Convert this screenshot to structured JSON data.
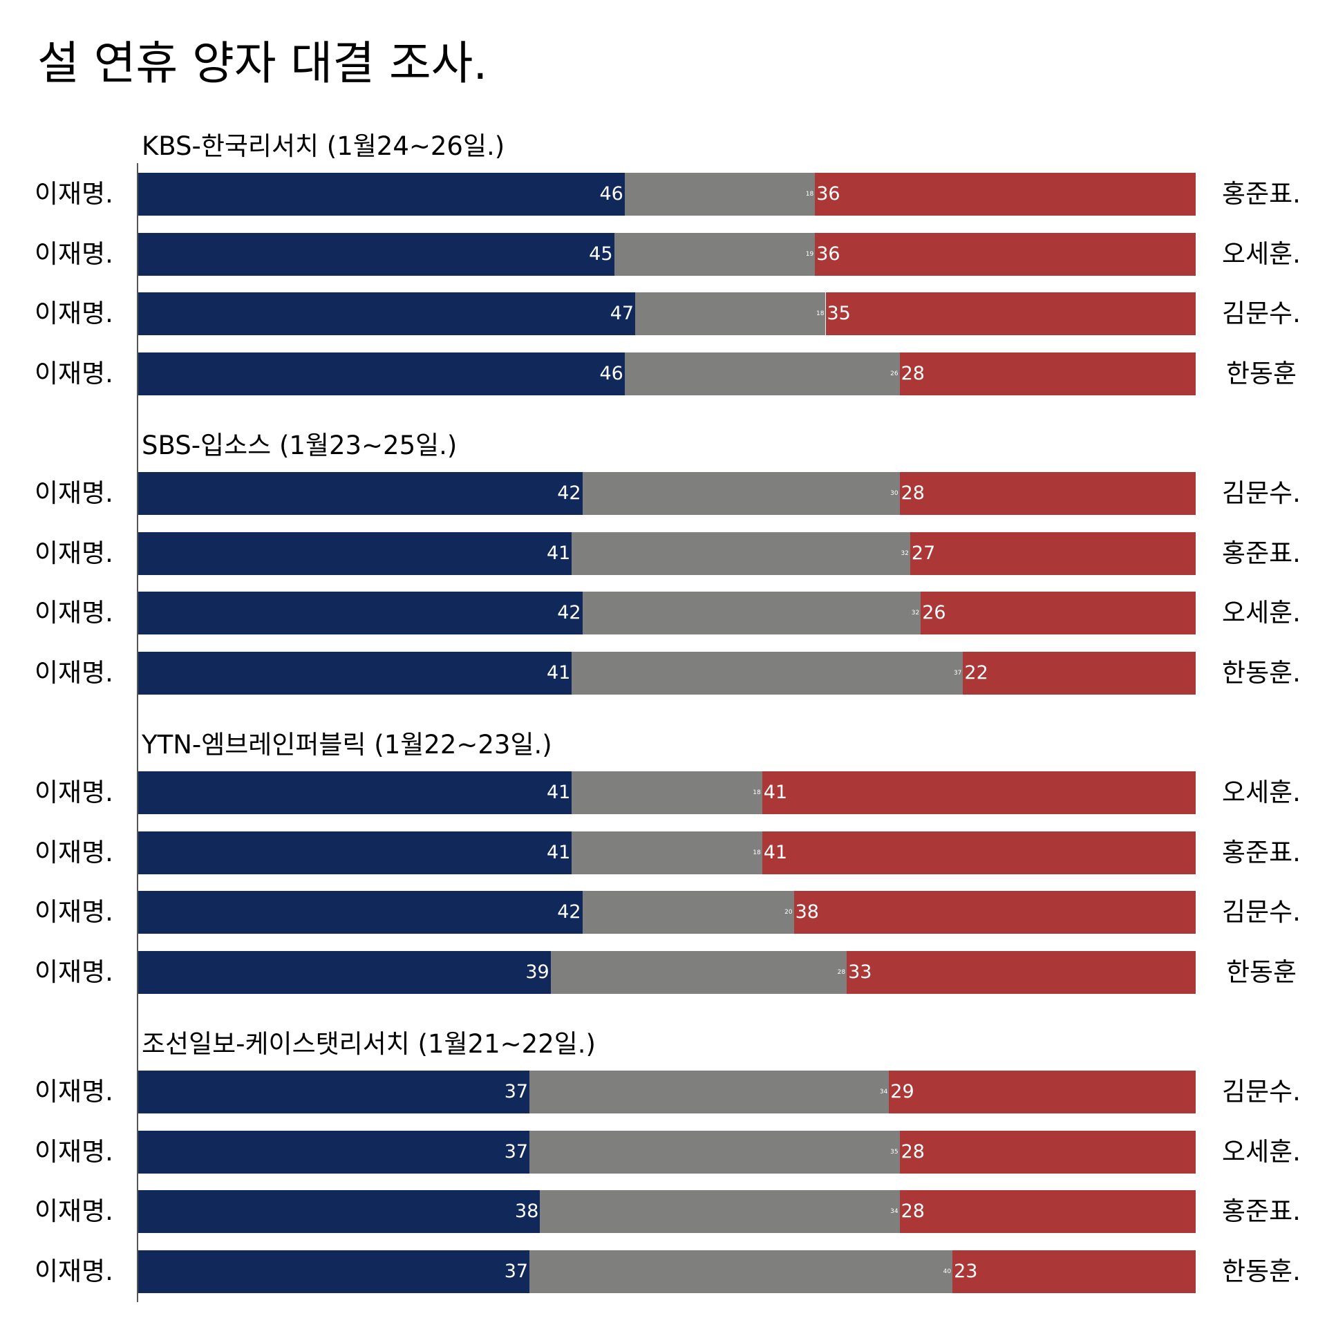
{
  "title": "설 연휴 양자 대결 조사.",
  "colors": {
    "candidate_a": "#10295a",
    "undecided": "#7f7f7d",
    "candidate_b": "#ab3836"
  },
  "chart_data": {
    "type": "bar",
    "orientation": "horizontal",
    "stacked": true,
    "xlim": [
      0,
      100
    ],
    "groups": [
      {
        "title": "KBS-한국리서치 (1월24~26일.)",
        "rows": [
          {
            "left": "이재명.",
            "right": "홍준표.",
            "a": 46,
            "mid": 18,
            "b": 36
          },
          {
            "left": "이재명.",
            "right": "오세훈.",
            "a": 45,
            "mid": 19,
            "b": 36
          },
          {
            "left": "이재명.",
            "right": "김문수.",
            "a": 47,
            "mid": 18,
            "b": 35
          },
          {
            "left": "이재명.",
            "right": "한동훈",
            "a": 46,
            "mid": 26,
            "b": 28
          }
        ]
      },
      {
        "title": "SBS-입소스 (1월23~25일.)",
        "rows": [
          {
            "left": "이재명.",
            "right": "김문수.",
            "a": 42,
            "mid": 30,
            "b": 28
          },
          {
            "left": "이재명.",
            "right": "홍준표.",
            "a": 41,
            "mid": 32,
            "b": 27
          },
          {
            "left": "이재명.",
            "right": "오세훈.",
            "a": 42,
            "mid": 32,
            "b": 26
          },
          {
            "left": "이재명.",
            "right": "한동훈.",
            "a": 41,
            "mid": 37,
            "b": 22
          }
        ]
      },
      {
        "title": "YTN-엠브레인퍼블릭 (1월22~23일.)",
        "rows": [
          {
            "left": "이재명.",
            "right": "오세훈.",
            "a": 41,
            "mid": 18,
            "b": 41
          },
          {
            "left": "이재명.",
            "right": "홍준표.",
            "a": 41,
            "mid": 18,
            "b": 41
          },
          {
            "left": "이재명.",
            "right": "김문수.",
            "a": 42,
            "mid": 20,
            "b": 38
          },
          {
            "left": "이재명.",
            "right": "한동훈",
            "a": 39,
            "mid": 28,
            "b": 33
          }
        ]
      },
      {
        "title": "조선일보-케이스탯리서치 (1월21~22일.)",
        "rows": [
          {
            "left": "이재명.",
            "right": "김문수.",
            "a": 37,
            "mid": 34,
            "b": 29
          },
          {
            "left": "이재명.",
            "right": "오세훈.",
            "a": 37,
            "mid": 35,
            "b": 28
          },
          {
            "left": "이재명.",
            "right": "홍준표.",
            "a": 38,
            "mid": 34,
            "b": 28
          },
          {
            "left": "이재명.",
            "right": "한동훈.",
            "a": 37,
            "mid": 40,
            "b": 23
          }
        ]
      }
    ]
  }
}
